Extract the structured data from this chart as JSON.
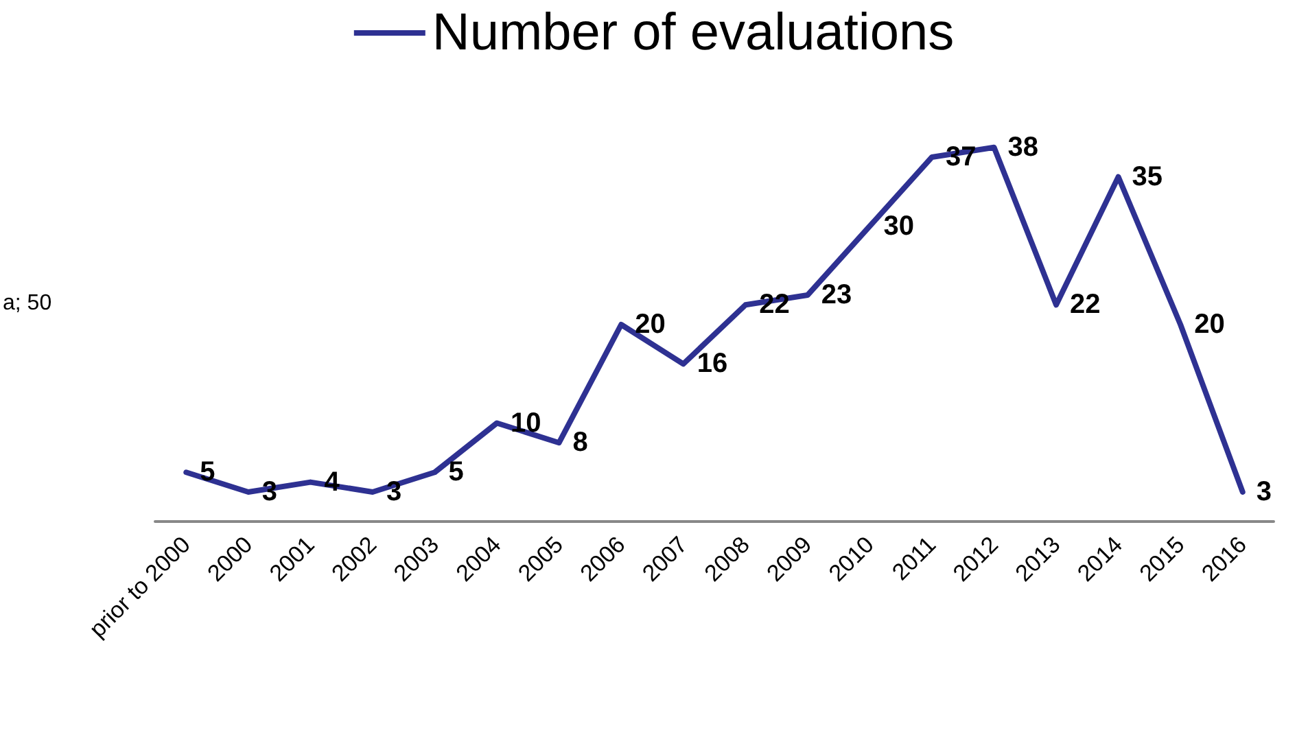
{
  "chart_data": {
    "type": "line",
    "categories": [
      "prior to 2000",
      "2000",
      "2001",
      "2002",
      "2003",
      "2004",
      "2005",
      "2006",
      "2007",
      "2008",
      "2009",
      "2010",
      "2011",
      "2012",
      "2013",
      "2014",
      "2015",
      "2016"
    ],
    "series": [
      {
        "name": "Number of evaluations",
        "color": "#2e3192",
        "values": [
          5,
          3,
          4,
          3,
          5,
          10,
          8,
          20,
          16,
          22,
          23,
          30,
          37,
          38,
          22,
          35,
          20,
          3
        ]
      }
    ],
    "data_labels": true,
    "legend": "top",
    "grid": false,
    "marker": "none",
    "line_style": "solid",
    "annotations": [
      "a; 50"
    ]
  }
}
